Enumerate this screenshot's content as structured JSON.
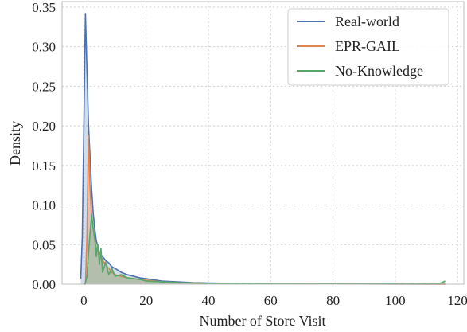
{
  "chart_data": {
    "type": "area",
    "title": "",
    "xlabel": "Number of Store Visit",
    "ylabel": "Density",
    "xlim": [
      -7,
      122
    ],
    "ylim": [
      0,
      0.357
    ],
    "xticks": [
      0,
      20,
      40,
      60,
      80,
      100,
      120
    ],
    "yticks": [
      0.0,
      0.05,
      0.1,
      0.15,
      0.2,
      0.25,
      0.3,
      0.35
    ],
    "xtick_labels": [
      "0",
      "20",
      "40",
      "60",
      "80",
      "100",
      "120"
    ],
    "ytick_labels": [
      "0.00",
      "0.05",
      "0.10",
      "0.15",
      "0.20",
      "0.25",
      "0.30",
      "0.35"
    ],
    "grid": true,
    "legend_position": "top-right",
    "series": [
      {
        "name": "Real-world",
        "color": "#4C72B0",
        "x": [
          -1,
          -0.5,
          0,
          0.5,
          1,
          1.5,
          2,
          2.5,
          3,
          3.5,
          4,
          5,
          6,
          7,
          8,
          9,
          10,
          12,
          14,
          16,
          18,
          20,
          25,
          30,
          35,
          40,
          50,
          60,
          80,
          100,
          116
        ],
        "y": [
          0.007,
          0.06,
          0.2,
          0.342,
          0.27,
          0.2,
          0.16,
          0.12,
          0.09,
          0.07,
          0.055,
          0.04,
          0.035,
          0.03,
          0.027,
          0.022,
          0.02,
          0.015,
          0.012,
          0.01,
          0.008,
          0.007,
          0.004,
          0.003,
          0.002,
          0.0015,
          0.001,
          0.0007,
          0.0004,
          0.0002,
          0.0001
        ]
      },
      {
        "name": "EPR-GAIL",
        "color": "#DD8452",
        "x": [
          0,
          0.5,
          1,
          1.5,
          2,
          2.5,
          3,
          3.5,
          4,
          5,
          6,
          7,
          8,
          9,
          10,
          12,
          14,
          16,
          18,
          20,
          25,
          30,
          40,
          50,
          60,
          80,
          100,
          116
        ],
        "y": [
          0,
          0.0,
          0.06,
          0.188,
          0.12,
          0.085,
          0.07,
          0.055,
          0.045,
          0.04,
          0.03,
          0.025,
          0.02,
          0.015,
          0.012,
          0.01,
          0.008,
          0.007,
          0.006,
          0.005,
          0.003,
          0.002,
          0.0012,
          0.0008,
          0.0005,
          0.0003,
          0.0002,
          0.0001
        ]
      },
      {
        "name": "No-Knowledge",
        "color": "#55A868",
        "x": [
          0,
          0.5,
          1,
          1.5,
          2,
          2.5,
          3,
          3.5,
          4,
          4.5,
          5,
          5.5,
          6,
          7,
          8,
          9,
          10,
          12,
          14,
          16,
          18,
          20,
          25,
          30,
          40,
          50,
          60,
          80,
          100,
          110,
          114,
          115,
          116
        ],
        "y": [
          0,
          0.002,
          0.01,
          0.04,
          0.065,
          0.088,
          0.07,
          0.06,
          0.035,
          0.05,
          0.025,
          0.045,
          0.015,
          0.028,
          0.012,
          0.02,
          0.01,
          0.012,
          0.008,
          0.007,
          0.006,
          0.004,
          0.003,
          0.002,
          0.0012,
          0.0008,
          0.0006,
          0.0004,
          0.0003,
          0.0006,
          0.001,
          0.002,
          0.004
        ]
      }
    ]
  }
}
